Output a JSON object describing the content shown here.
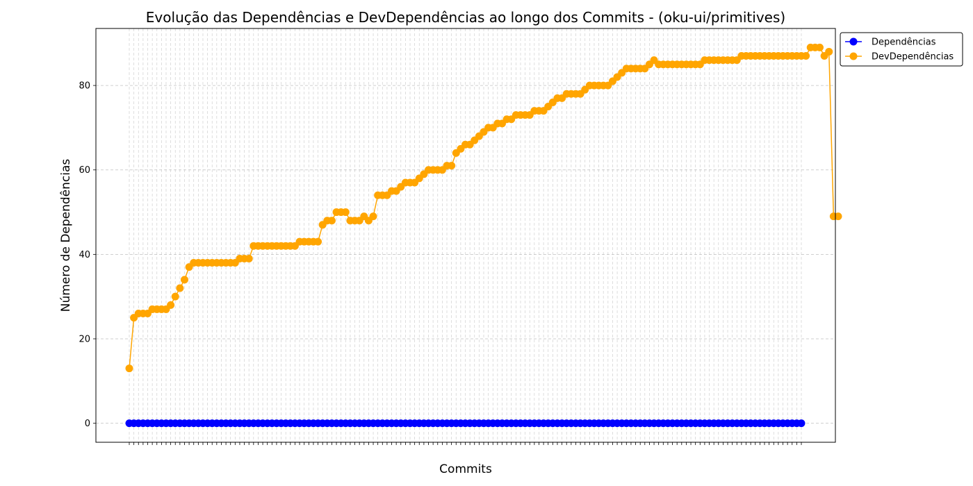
{
  "chart_data": {
    "type": "line",
    "title": "Evolução das Dependências e DevDependências ao longo dos Commits - (oku-ui/primitives)",
    "xlabel": "Commits",
    "ylabel": "Número de Dependências",
    "ylim": [
      -4.5,
      93.5
    ],
    "yticks": [
      0,
      20,
      40,
      60,
      80
    ],
    "grid": true,
    "legend_position": "top-right-outside",
    "colors": {
      "dependencias": "#0000ff",
      "devdependencias": "#ffa500",
      "grid": "#b0b0b0"
    },
    "series": [
      {
        "name": "Dependências",
        "values": [
          0,
          0,
          0,
          0,
          0,
          0,
          0,
          0,
          0,
          0,
          0,
          0,
          0,
          0,
          0,
          0,
          0,
          0,
          0,
          0,
          0,
          0,
          0,
          0,
          0,
          0,
          0,
          0,
          0,
          0,
          0,
          0,
          0,
          0,
          0,
          0,
          0,
          0,
          0,
          0,
          0,
          0,
          0,
          0,
          0,
          0,
          0,
          0,
          0,
          0,
          0,
          0,
          0,
          0,
          0,
          0,
          0,
          0,
          0,
          0,
          0,
          0,
          0,
          0,
          0,
          0,
          0,
          0,
          0,
          0,
          0,
          0,
          0,
          0,
          0,
          0,
          0,
          0,
          0,
          0,
          0,
          0,
          0,
          0,
          0,
          0,
          0,
          0,
          0,
          0,
          0,
          0,
          0,
          0,
          0,
          0,
          0,
          0,
          0,
          0,
          0,
          0,
          0,
          0,
          0,
          0,
          0,
          0,
          0,
          0,
          0,
          0,
          0,
          0,
          0,
          0,
          0,
          0,
          0,
          0,
          0,
          0,
          0,
          0,
          0,
          0,
          0,
          0,
          0,
          0,
          0,
          0,
          0,
          0,
          0,
          0,
          0,
          0,
          0,
          0,
          0,
          0,
          0,
          0,
          0,
          0,
          0
        ]
      },
      {
        "name": "DevDependências",
        "values": [
          13,
          25,
          26,
          26,
          26,
          27,
          27,
          27,
          27,
          28,
          30,
          32,
          34,
          37,
          38,
          38,
          38,
          38,
          38,
          38,
          38,
          38,
          38,
          38,
          39,
          39,
          39,
          42,
          42,
          42,
          42,
          42,
          42,
          42,
          42,
          42,
          42,
          43,
          43,
          43,
          43,
          43,
          47,
          48,
          48,
          50,
          50,
          50,
          48,
          48,
          48,
          49,
          48,
          49,
          54,
          54,
          54,
          55,
          55,
          56,
          57,
          57,
          57,
          58,
          59,
          60,
          60,
          60,
          60,
          61,
          61,
          64,
          65,
          66,
          66,
          67,
          68,
          69,
          70,
          70,
          71,
          71,
          72,
          72,
          73,
          73,
          73,
          73,
          74,
          74,
          74,
          75,
          76,
          77,
          77,
          78,
          78,
          78,
          78,
          79,
          80,
          80,
          80,
          80,
          80,
          81,
          82,
          83,
          84,
          84,
          84,
          84,
          84,
          85,
          86,
          85,
          85,
          85,
          85,
          85,
          85,
          85,
          85,
          85,
          85,
          86,
          86,
          86,
          86,
          86,
          86,
          86,
          86,
          87,
          87,
          87,
          87,
          87,
          87,
          87,
          87,
          87,
          87,
          87,
          87,
          87,
          87,
          87,
          89,
          89,
          89,
          87,
          88,
          49,
          49
        ]
      }
    ]
  }
}
